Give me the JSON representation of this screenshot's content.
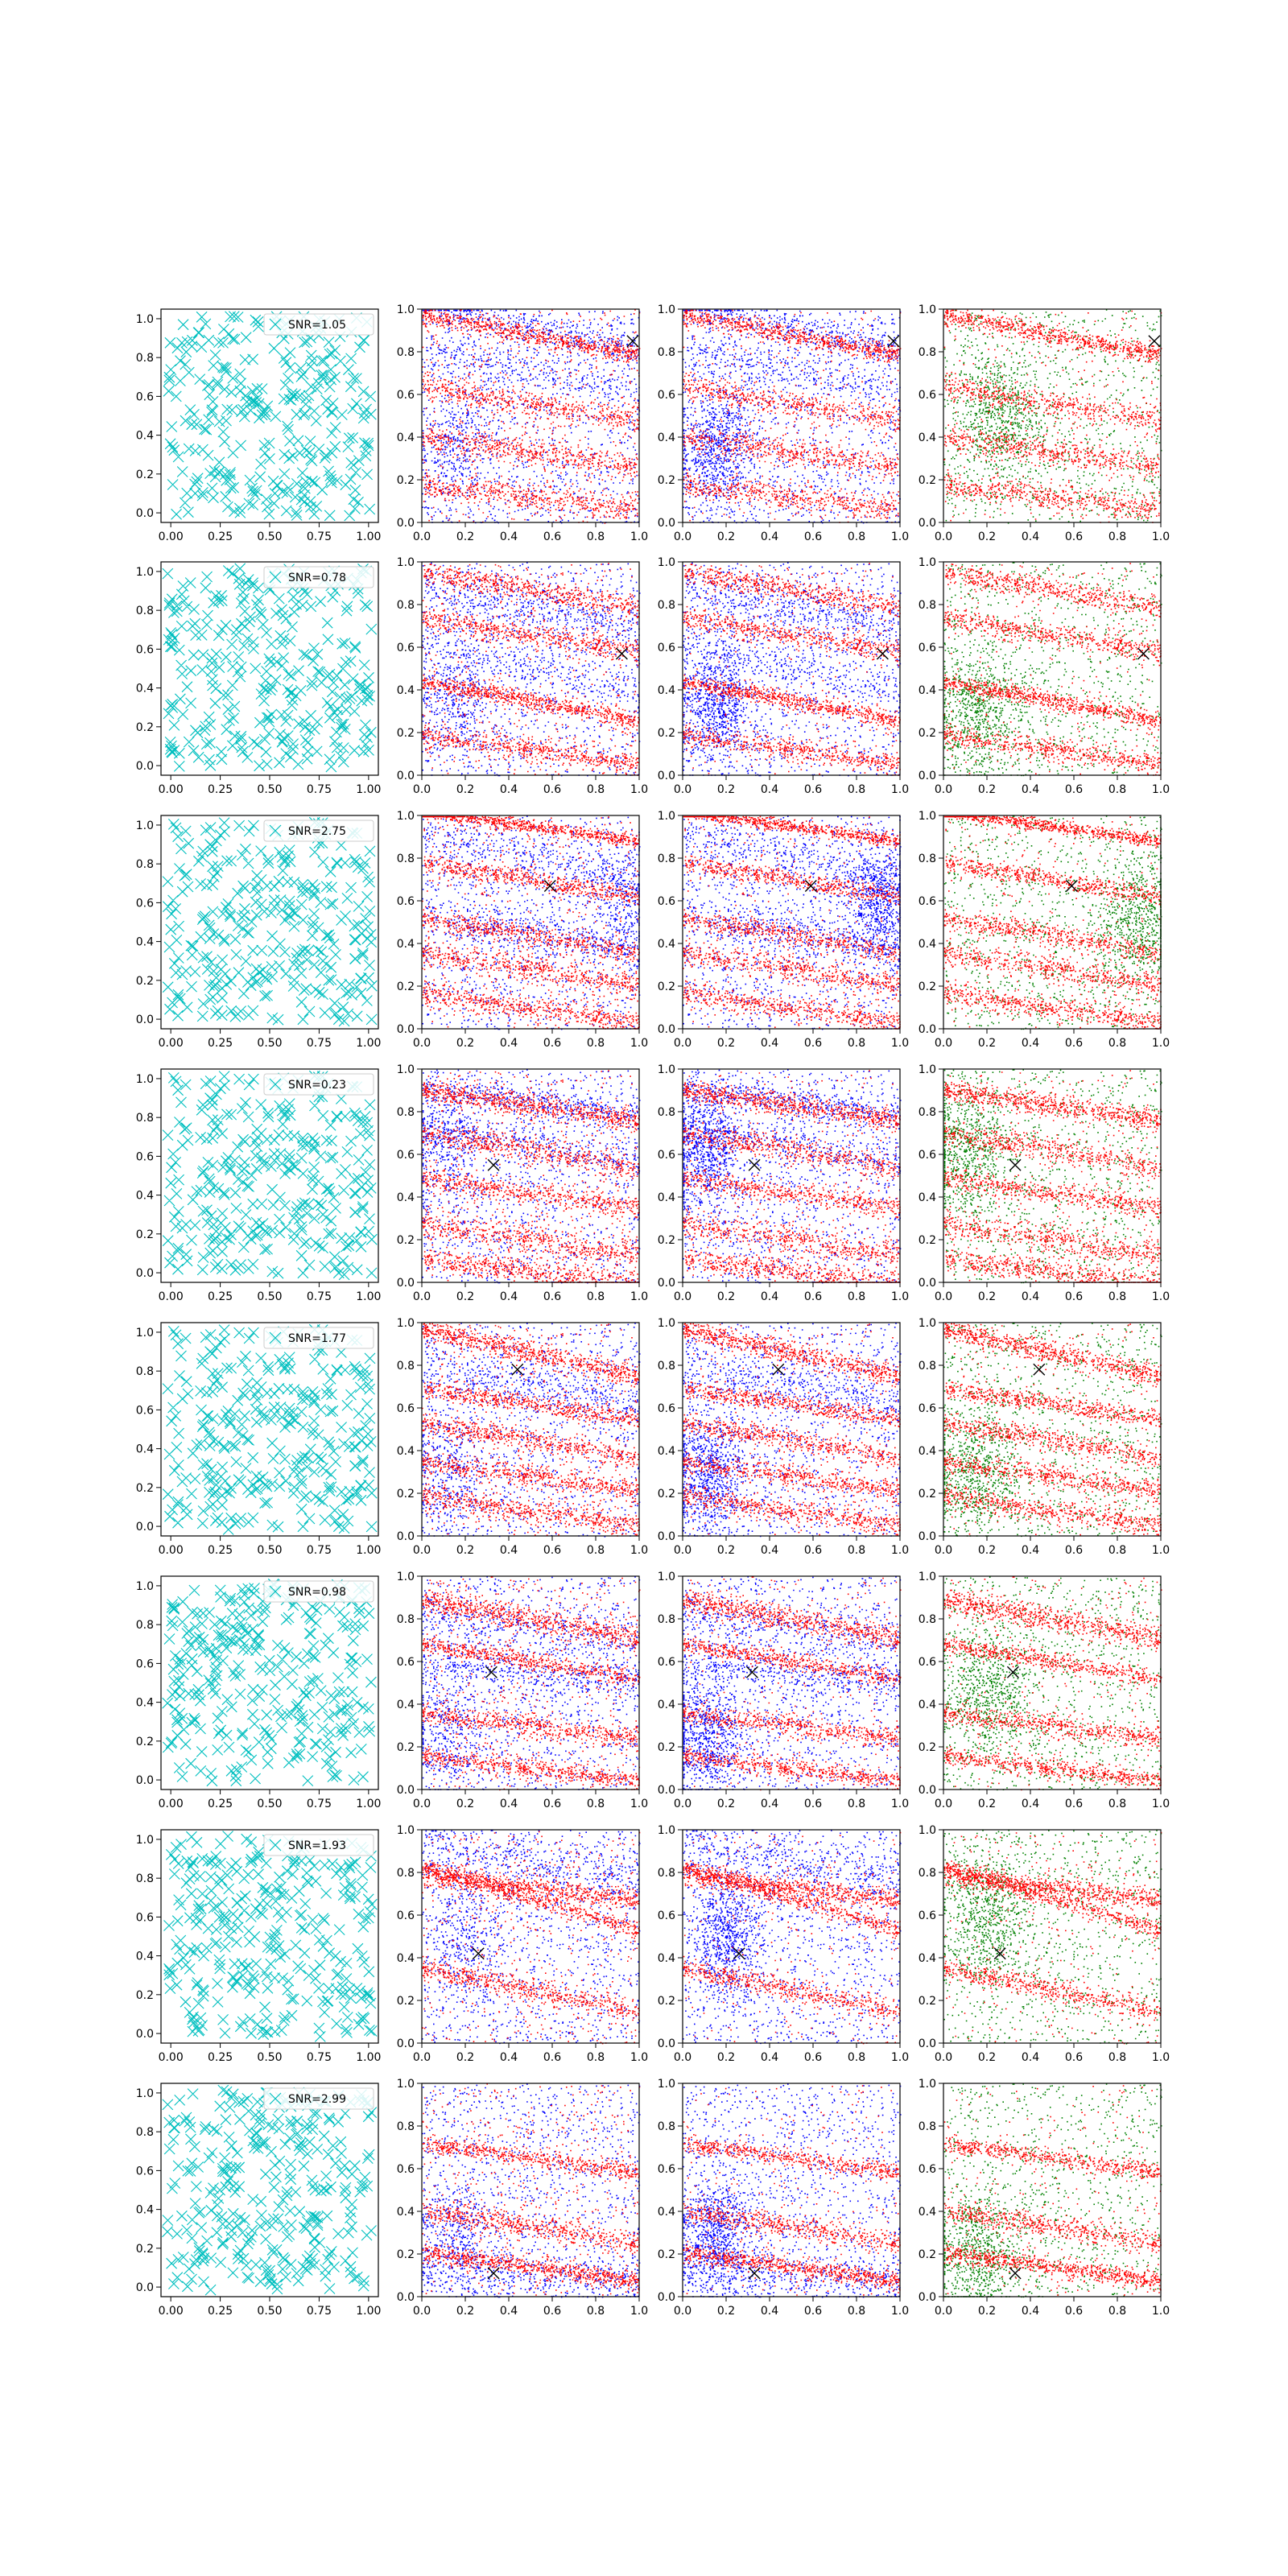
{
  "figure": {
    "rows": 8,
    "cols": 4,
    "colors": {
      "cyan": "#00bfbf",
      "red": "#ff0000",
      "blue": "#0000ff",
      "green": "#008000",
      "marker": "#000000",
      "axis": "#000000"
    }
  },
  "chart_data": [
    {
      "row": 0,
      "type": "scatter",
      "legend": "SNR=1.05",
      "legend_loc": "upper-right",
      "marker": [
        0.97,
        0.85
      ],
      "red_bands": [
        [
          0.88,
          -0.18,
          0.022
        ],
        [
          0.56,
          -0.16,
          0.03
        ],
        [
          0.33,
          -0.14,
          0.03
        ],
        [
          0.12,
          -0.12,
          0.03
        ]
      ],
      "blue_bands": [
        [
          0.92,
          -0.22,
          0.04
        ],
        [
          0.72,
          -0.18,
          0.04
        ]
      ],
      "blue_cluster": [
        0.15,
        0.35
      ],
      "green_cluster": [
        0.25,
        0.5
      ]
    },
    {
      "row": 1,
      "type": "scatter",
      "legend": "SNR=0.78",
      "legend_loc": "upper-right",
      "marker": [
        0.92,
        0.57
      ],
      "red_bands": [
        [
          0.35,
          -0.18,
          0.02
        ],
        [
          0.12,
          -0.14,
          0.025
        ],
        [
          0.66,
          -0.16,
          0.025
        ],
        [
          0.87,
          -0.16,
          0.025
        ]
      ],
      "blue_bands": [
        [
          0.78,
          -0.2,
          0.05
        ],
        [
          0.5,
          -0.2,
          0.05
        ]
      ],
      "blue_cluster": [
        0.15,
        0.32
      ],
      "green_cluster": [
        0.15,
        0.3
      ]
    },
    {
      "row": 2,
      "type": "scatter",
      "legend": "SNR=2.75",
      "legend_loc": "upper-right",
      "marker": [
        0.59,
        0.67
      ],
      "red_bands": [
        [
          0.95,
          -0.14,
          0.015
        ],
        [
          0.44,
          -0.16,
          0.025
        ],
        [
          0.28,
          -0.16,
          0.03
        ],
        [
          0.1,
          -0.14,
          0.025
        ],
        [
          0.7,
          -0.16,
          0.02
        ]
      ],
      "blue_bands": [
        [
          0.45,
          -0.2,
          0.05
        ],
        [
          0.8,
          -0.2,
          0.05
        ]
      ],
      "blue_cluster": [
        0.9,
        0.6
      ],
      "green_cluster": [
        0.9,
        0.5
      ]
    },
    {
      "row": 3,
      "type": "scatter",
      "legend": "SNR=0.23",
      "legend_loc": "upper-right",
      "marker": [
        0.33,
        0.55
      ],
      "red_bands": [
        [
          0.83,
          -0.14,
          0.025
        ],
        [
          0.62,
          -0.16,
          0.03
        ],
        [
          0.2,
          -0.16,
          0.035
        ],
        [
          0.42,
          -0.14,
          0.025
        ],
        [
          0.05,
          -0.12,
          0.025
        ]
      ],
      "blue_bands": [
        [
          0.85,
          -0.14,
          0.03
        ],
        [
          0.65,
          -0.18,
          0.04
        ]
      ],
      "blue_cluster": [
        0.1,
        0.62
      ],
      "green_cluster": [
        0.1,
        0.62
      ]
    },
    {
      "row": 4,
      "type": "scatter",
      "legend": "SNR=1.77",
      "legend_loc": "upper-right",
      "marker": [
        0.44,
        0.78
      ],
      "red_bands": [
        [
          0.86,
          -0.22,
          0.025
        ],
        [
          0.45,
          -0.16,
          0.025
        ],
        [
          0.28,
          -0.14,
          0.025
        ],
        [
          0.12,
          -0.14,
          0.025
        ],
        [
          0.62,
          -0.14,
          0.02
        ]
      ],
      "blue_bands": [
        [
          0.7,
          -0.2,
          0.05
        ]
      ],
      "blue_cluster": [
        0.12,
        0.3
      ],
      "green_cluster": [
        0.15,
        0.3
      ]
    },
    {
      "row": 5,
      "type": "scatter",
      "legend": "SNR=0.98",
      "legend_loc": "upper-right",
      "marker": [
        0.32,
        0.55
      ],
      "red_bands": [
        [
          0.8,
          -0.18,
          0.03
        ],
        [
          0.6,
          -0.16,
          0.02
        ],
        [
          0.3,
          -0.12,
          0.025
        ],
        [
          0.1,
          -0.12,
          0.02
        ]
      ],
      "blue_bands": [
        [
          0.55,
          -0.1,
          0.04
        ],
        [
          0.75,
          -0.16,
          0.05
        ]
      ],
      "blue_cluster": [
        0.1,
        0.25
      ],
      "green_cluster": [
        0.2,
        0.45
      ]
    },
    {
      "row": 6,
      "type": "scatter",
      "legend": "SNR=1.93",
      "legend_loc": "upper-right",
      "marker": [
        0.26,
        0.42
      ],
      "red_bands": [
        [
          0.73,
          -0.12,
          0.025
        ],
        [
          0.68,
          -0.3,
          0.02
        ],
        [
          0.25,
          -0.2,
          0.025
        ]
      ],
      "blue_bands": [
        [
          0.85,
          -0.15,
          0.05
        ]
      ],
      "blue_cluster": [
        0.2,
        0.5
      ],
      "green_cluster": [
        0.2,
        0.6
      ]
    },
    {
      "row": 7,
      "type": "scatter",
      "legend": "SNR=2.99",
      "legend_loc": "upper-right",
      "marker": [
        0.33,
        0.11
      ],
      "red_bands": [
        [
          0.14,
          -0.14,
          0.02
        ],
        [
          0.33,
          -0.16,
          0.025
        ],
        [
          0.65,
          -0.14,
          0.02
        ]
      ],
      "blue_bands": [
        [
          0.1,
          -0.05,
          0.05
        ]
      ],
      "blue_cluster": [
        0.15,
        0.3
      ],
      "green_cluster": [
        0.15,
        0.2
      ]
    }
  ],
  "ticks": {
    "col0_x": [
      "0.00",
      "0.25",
      "0.50",
      "0.75",
      "1.00"
    ],
    "col0_y": [
      "0.0",
      "0.2",
      "0.4",
      "0.6",
      "0.8",
      "1.0"
    ],
    "xy": [
      "0.0",
      "0.2",
      "0.4",
      "0.6",
      "0.8",
      "1.0"
    ],
    "range": [
      0,
      1
    ]
  }
}
